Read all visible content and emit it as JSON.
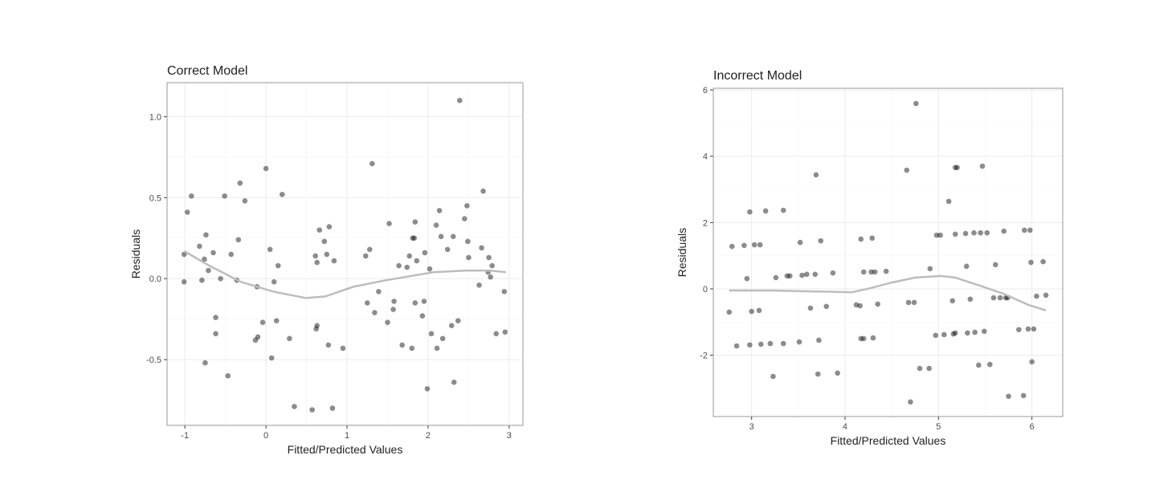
{
  "chart_data": [
    {
      "type": "scatter",
      "title": "Correct Model",
      "x_label": "Fitted/Predicted Values",
      "y_label": "Residuals",
      "color": "#000000",
      "x": [
        -1.01,
        -1.01,
        -0.97,
        -0.92,
        -0.82,
        -0.79,
        -0.76,
        -0.74,
        -0.75,
        -0.71,
        -0.65,
        -0.62,
        -0.62,
        -0.56,
        -0.51,
        -0.47,
        -0.43,
        -0.36,
        -0.34,
        -0.32,
        -0.26,
        -0.13,
        -0.11,
        -0.1,
        -0.04,
        0.0,
        0.05,
        0.07,
        0.1,
        0.13,
        0.15,
        0.2,
        0.29,
        0.35,
        0.57,
        0.61,
        0.62,
        0.63,
        0.63,
        0.66,
        0.72,
        0.75,
        0.78,
        0.77,
        0.82,
        0.84,
        0.95,
        1.23,
        1.25,
        1.28,
        1.31,
        1.34,
        1.39,
        1.5,
        1.52,
        1.57,
        1.58,
        1.64,
        1.68,
        1.74,
        1.77,
        1.8,
        1.81,
        1.83,
        1.84,
        1.84,
        1.86,
        1.93,
        1.95,
        1.96,
        1.99,
        2.02,
        2.04,
        2.1,
        2.11,
        2.14,
        2.16,
        2.18,
        2.24,
        2.29,
        2.31,
        2.32,
        2.37,
        2.39,
        2.45,
        2.48,
        2.49,
        2.5,
        2.63,
        2.66,
        2.68,
        2.74,
        2.75,
        2.77,
        2.79,
        2.84,
        2.94,
        2.95
      ],
      "y": [
        0.15,
        -0.02,
        0.41,
        0.51,
        0.2,
        -0.01,
        0.12,
        0.27,
        -0.52,
        0.05,
        0.16,
        -0.24,
        -0.34,
        0.0,
        0.51,
        -0.6,
        0.15,
        -0.01,
        0.24,
        0.59,
        0.48,
        -0.38,
        -0.05,
        -0.36,
        -0.27,
        0.68,
        0.18,
        -0.49,
        -0.02,
        -0.26,
        0.08,
        0.52,
        -0.37,
        -0.79,
        -0.81,
        0.14,
        -0.31,
        -0.29,
        0.1,
        0.3,
        0.23,
        0.15,
        0.32,
        -0.41,
        -0.8,
        0.11,
        -0.43,
        0.14,
        -0.15,
        0.18,
        0.71,
        -0.21,
        -0.08,
        -0.27,
        0.34,
        -0.19,
        -0.14,
        0.08,
        -0.41,
        0.07,
        0.14,
        -0.43,
        0.25,
        0.25,
        -0.15,
        0.35,
        0.11,
        -0.23,
        -0.14,
        0.16,
        -0.68,
        0.06,
        -0.34,
        0.33,
        -0.43,
        0.42,
        0.26,
        -0.37,
        0.18,
        -0.29,
        0.26,
        -0.64,
        -0.26,
        1.1,
        0.37,
        0.45,
        0.23,
        0.13,
        -0.04,
        0.19,
        0.54,
        0.04,
        0.13,
        0.01,
        0.08,
        -0.34,
        -0.08,
        -0.33
      ],
      "smooth": {
        "color": "#bdbdbd",
        "x": [
          -1.01,
          -0.7,
          -0.31,
          0.09,
          0.49,
          0.73,
          1.08,
          1.48,
          2.07,
          2.47,
          2.76,
          2.96
        ],
        "y": [
          0.17,
          0.08,
          -0.02,
          -0.08,
          -0.12,
          -0.11,
          -0.05,
          -0.01,
          0.04,
          0.05,
          0.05,
          0.04
        ]
      },
      "xlim": [
        -1.22,
        3.17
      ],
      "ylim": [
        -0.906,
        1.21
      ],
      "xticks": [
        -1,
        0,
        1,
        2,
        3
      ],
      "yticks": [
        -0.5,
        {
          "value": 0,
          "label": "0.0"
        },
        0.5,
        {
          "value": 1,
          "label": "1.0"
        }
      ],
      "grid": true
    },
    {
      "type": "scatter",
      "title": "Incorrect Model",
      "x_label": "Fitted/Predicted Values",
      "y_label": "Residuals",
      "color": "#000000",
      "x": [
        2.76,
        2.79,
        2.84,
        2.92,
        2.95,
        2.98,
        2.98,
        3.0,
        3.03,
        3.08,
        3.09,
        3.1,
        3.15,
        3.2,
        3.23,
        3.26,
        3.34,
        3.34,
        3.38,
        3.41,
        3.51,
        3.52,
        3.54,
        3.59,
        3.63,
        3.68,
        3.69,
        3.71,
        3.72,
        3.74,
        3.8,
        3.87,
        3.92,
        4.12,
        4.16,
        4.17,
        4.17,
        4.2,
        4.2,
        4.28,
        4.29,
        4.3,
        4.32,
        4.35,
        4.44,
        4.66,
        4.68,
        4.7,
        4.74,
        4.76,
        4.8,
        4.9,
        4.91,
        4.97,
        4.98,
        5.02,
        5.06,
        5.11,
        5.15,
        5.16,
        5.18,
        5.18,
        5.2,
        5.18,
        5.29,
        5.3,
        5.31,
        5.34,
        5.38,
        5.39,
        5.45,
        5.47,
        5.43,
        5.49,
        5.52,
        5.55,
        5.59,
        5.61,
        5.66,
        5.7,
        5.72,
        5.74,
        5.75,
        5.86,
        5.91,
        5.92,
        5.96,
        5.98,
        5.99,
        6.0,
        6.02,
        6.05,
        6.12,
        6.15
      ],
      "y": [
        -0.7,
        1.28,
        -1.72,
        1.31,
        0.31,
        2.32,
        -1.69,
        -0.68,
        1.33,
        -0.65,
        1.33,
        -1.67,
        2.35,
        -1.65,
        -2.64,
        0.34,
        2.37,
        -1.65,
        0.39,
        0.39,
        -1.6,
        1.4,
        0.41,
        0.44,
        -0.58,
        0.44,
        3.44,
        -2.57,
        -1.55,
        1.45,
        -0.53,
        0.48,
        -2.54,
        -0.48,
        -0.51,
        1.5,
        -1.5,
        0.51,
        -1.5,
        0.51,
        1.53,
        -1.48,
        0.51,
        -0.46,
        0.53,
        3.58,
        -0.41,
        -3.41,
        -0.41,
        5.59,
        -2.4,
        -2.4,
        0.61,
        -1.4,
        1.62,
        1.62,
        -1.38,
        2.64,
        -0.36,
        -1.36,
        1.65,
        3.66,
        3.66,
        -1.33,
        1.67,
        0.68,
        -1.33,
        -0.31,
        1.69,
        -1.31,
        1.69,
        3.7,
        -2.3,
        -1.28,
        1.69,
        -2.28,
        -0.27,
        0.73,
        -0.27,
        1.74,
        -0.27,
        -0.27,
        -3.24,
        -1.23,
        -3.22,
        1.77,
        -1.21,
        1.77,
        0.8,
        -2.2,
        -1.21,
        -0.22,
        0.82,
        -0.19
      ],
      "smooth": {
        "color": "#bdbdbd",
        "x": [
          2.76,
          3.21,
          3.55,
          4.07,
          4.24,
          4.5,
          4.75,
          5.03,
          5.18,
          5.44,
          5.7,
          5.96,
          6.15
        ],
        "y": [
          -0.05,
          -0.05,
          -0.07,
          -0.1,
          0.0,
          0.19,
          0.34,
          0.39,
          0.34,
          0.1,
          -0.15,
          -0.48,
          -0.65
        ]
      },
      "xlim": [
        2.59,
        6.33
      ],
      "ylim": [
        -3.85,
        6.05
      ],
      "xticks": [
        3,
        4,
        5,
        6
      ],
      "yticks": [
        -2,
        0,
        2,
        4,
        6
      ],
      "grid": true
    }
  ]
}
